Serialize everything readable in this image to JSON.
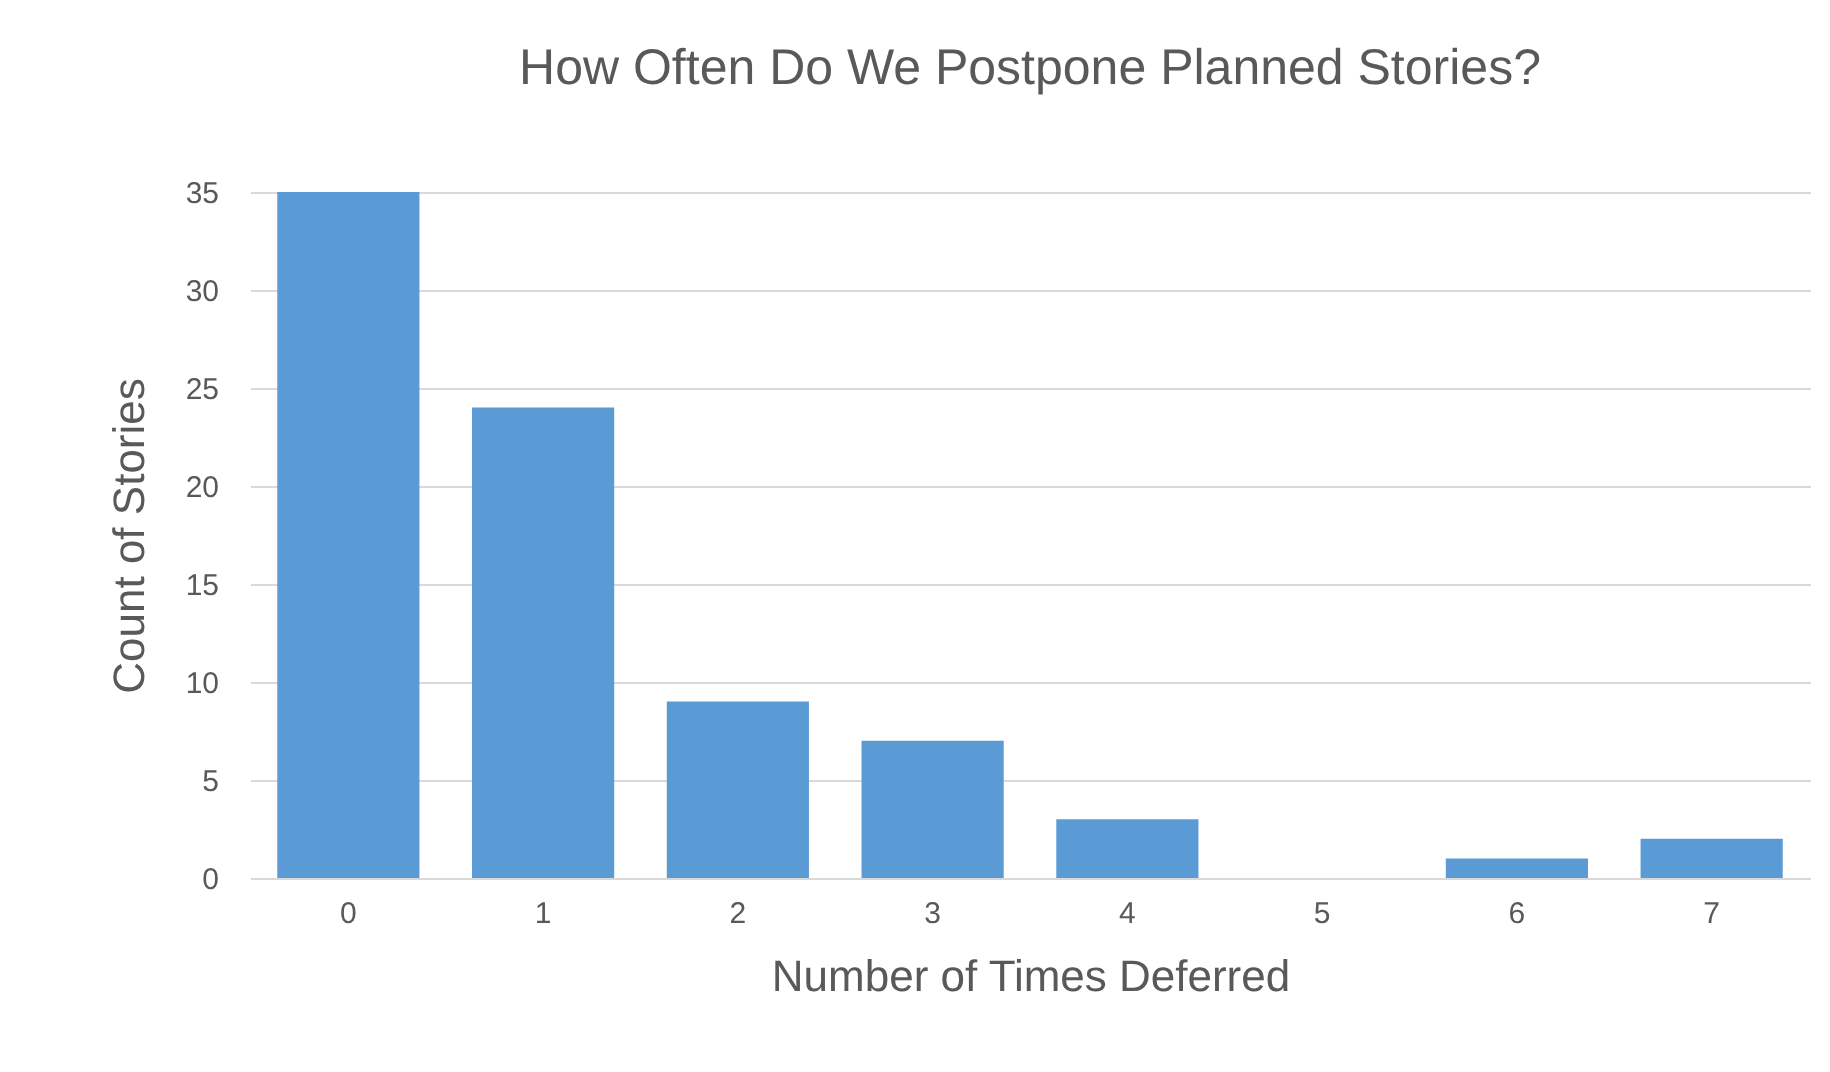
{
  "chart_data": {
    "type": "bar",
    "title": "How Often Do We Postpone Planned Stories?",
    "xlabel": "Number of Times Deferred",
    "ylabel": "Count of Stories",
    "categories": [
      "0",
      "1",
      "2",
      "3",
      "4",
      "5",
      "6",
      "7"
    ],
    "values": [
      35,
      24,
      9,
      7,
      3,
      0,
      1,
      2
    ],
    "color": "#5b9bd5",
    "ylim": [
      0,
      35
    ],
    "yticks": [
      0,
      5,
      10,
      15,
      20,
      25,
      30,
      35
    ],
    "grid": "y"
  }
}
